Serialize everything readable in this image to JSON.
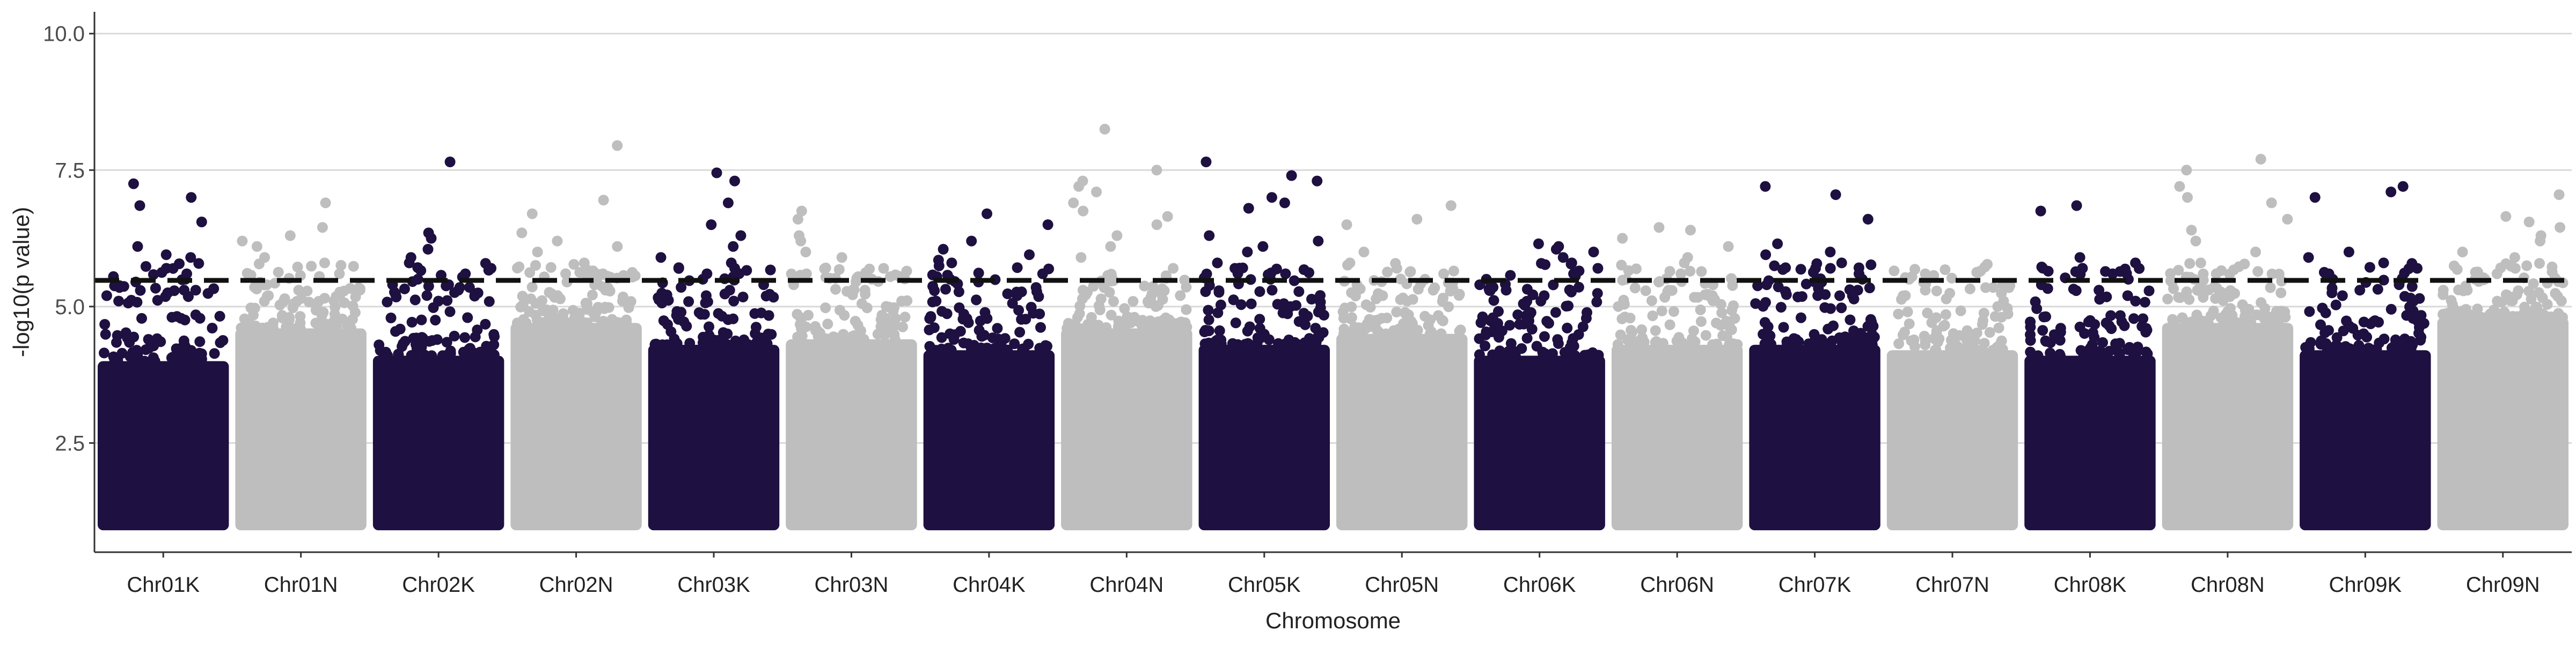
{
  "chart_data": {
    "type": "scatter",
    "title": "",
    "xlabel": "Chromosome",
    "ylabel": "-log10(p value)",
    "categories": [
      "Chr01K",
      "Chr01N",
      "Chr02K",
      "Chr02N",
      "Chr03K",
      "Chr03N",
      "Chr04K",
      "Chr04N",
      "Chr05K",
      "Chr05N",
      "Chr06K",
      "Chr06N",
      "Chr07K",
      "Chr07N",
      "Chr08K",
      "Chr08N",
      "Chr09K",
      "Chr09N"
    ],
    "y_ticks": [
      "2.5",
      "5.0",
      "7.5",
      "10.0"
    ],
    "y_tick_values": [
      2.5,
      5.0,
      7.5,
      10.0
    ],
    "ylim": [
      0.5,
      10.4
    ],
    "grid": "horizontal",
    "threshold": 5.48,
    "threshold_style": "dashed",
    "colors": {
      "K": "#1e1040",
      "N": "#bebebe",
      "threshold": "#111111",
      "grid": "#d9d9d9",
      "axis": "#333333"
    },
    "series": [
      {
        "chromosome": "Chr01K",
        "baseline_max": 4.0,
        "top_points": [
          7.25,
          7.0,
          6.85,
          6.55,
          6.1,
          5.95,
          5.9,
          5.7,
          5.6,
          5.5,
          5.45,
          5.35,
          5.3,
          5.2,
          5.1
        ]
      },
      {
        "chromosome": "Chr01N",
        "baseline_max": 4.6,
        "top_points": [
          6.9,
          6.45,
          6.3,
          6.2,
          6.1,
          5.9,
          5.8,
          5.6,
          5.55,
          5.4,
          5.3,
          5.2,
          5.1
        ]
      },
      {
        "chromosome": "Chr02K",
        "baseline_max": 4.1,
        "top_points": [
          7.65,
          6.35,
          6.25,
          6.05,
          5.9,
          5.8,
          5.7,
          5.6,
          5.5,
          5.4,
          5.35,
          5.25,
          5.1
        ]
      },
      {
        "chromosome": "Chr02N",
        "baseline_max": 4.7,
        "top_points": [
          7.95,
          6.95,
          6.7,
          6.35,
          6.2,
          6.1,
          6.0,
          5.8,
          5.6,
          5.5,
          5.4,
          5.3,
          5.1
        ]
      },
      {
        "chromosome": "Chr03K",
        "baseline_max": 4.3,
        "top_points": [
          7.45,
          7.3,
          6.9,
          6.5,
          6.3,
          6.1,
          5.9,
          5.8,
          5.7,
          5.6,
          5.5,
          5.4,
          5.3,
          5.2,
          5.1
        ]
      },
      {
        "chromosome": "Chr03N",
        "baseline_max": 4.4,
        "top_points": [
          6.75,
          6.6,
          6.3,
          6.2,
          6.0,
          5.9,
          5.7,
          5.6,
          5.5,
          5.4,
          5.3,
          5.1
        ]
      },
      {
        "chromosome": "Chr04K",
        "baseline_max": 4.2,
        "top_points": [
          6.7,
          6.5,
          6.2,
          6.05,
          5.95,
          5.85,
          5.8,
          5.6,
          5.5,
          5.45,
          5.35,
          5.2,
          5.1
        ]
      },
      {
        "chromosome": "Chr04N",
        "baseline_max": 4.6,
        "top_points": [
          8.25,
          7.5,
          7.3,
          7.2,
          7.1,
          6.9,
          6.75,
          6.65,
          6.5,
          6.3,
          6.1,
          5.9,
          5.7,
          5.5,
          5.3
        ]
      },
      {
        "chromosome": "Chr05K",
        "baseline_max": 4.3,
        "top_points": [
          7.65,
          7.4,
          7.3,
          7.0,
          6.9,
          6.8,
          6.3,
          6.2,
          6.1,
          6.0,
          5.8,
          5.7,
          5.6,
          5.5,
          5.3
        ]
      },
      {
        "chromosome": "Chr05N",
        "baseline_max": 4.5,
        "top_points": [
          6.85,
          6.6,
          6.5,
          6.0,
          5.8,
          5.7,
          5.6,
          5.5,
          5.4,
          5.3,
          5.2,
          5.1
        ]
      },
      {
        "chromosome": "Chr06K",
        "baseline_max": 4.1,
        "top_points": [
          6.15,
          6.1,
          6.05,
          6.0,
          5.9,
          5.8,
          5.7,
          5.6,
          5.5,
          5.4,
          5.3,
          5.2,
          5.1
        ]
      },
      {
        "chromosome": "Chr06N",
        "baseline_max": 4.3,
        "top_points": [
          6.45,
          6.4,
          6.25,
          6.1,
          5.9,
          5.8,
          5.6,
          5.5,
          5.4,
          5.3,
          5.2
        ]
      },
      {
        "chromosome": "Chr07K",
        "baseline_max": 4.3,
        "top_points": [
          7.2,
          7.05,
          6.6,
          6.15,
          6.0,
          5.95,
          5.8,
          5.7,
          5.6,
          5.5,
          5.4,
          5.3,
          5.2
        ]
      },
      {
        "chromosome": "Chr07N",
        "baseline_max": 4.2,
        "top_points": [
          5.6,
          5.5,
          5.4,
          5.35,
          5.3,
          5.2,
          5.1,
          5.0
        ]
      },
      {
        "chromosome": "Chr08K",
        "baseline_max": 4.1,
        "top_points": [
          6.85,
          6.75,
          5.9,
          5.6,
          5.5,
          5.4,
          5.3,
          5.2,
          5.1
        ]
      },
      {
        "chromosome": "Chr08N",
        "baseline_max": 4.7,
        "top_points": [
          7.7,
          7.5,
          7.2,
          7.0,
          6.9,
          6.6,
          6.4,
          6.2,
          6.0,
          5.8,
          5.6,
          5.5,
          5.3
        ]
      },
      {
        "chromosome": "Chr09K",
        "baseline_max": 4.2,
        "top_points": [
          7.2,
          7.1,
          7.0,
          6.0,
          5.9,
          5.8,
          5.7,
          5.6,
          5.5,
          5.4,
          5.3,
          5.2,
          5.1
        ]
      },
      {
        "chromosome": "Chr09N",
        "baseline_max": 4.8,
        "top_points": [
          7.05,
          6.65,
          6.55,
          6.45,
          6.3,
          6.2,
          6.0,
          5.9,
          5.7,
          5.6,
          5.5,
          5.3
        ]
      }
    ]
  }
}
